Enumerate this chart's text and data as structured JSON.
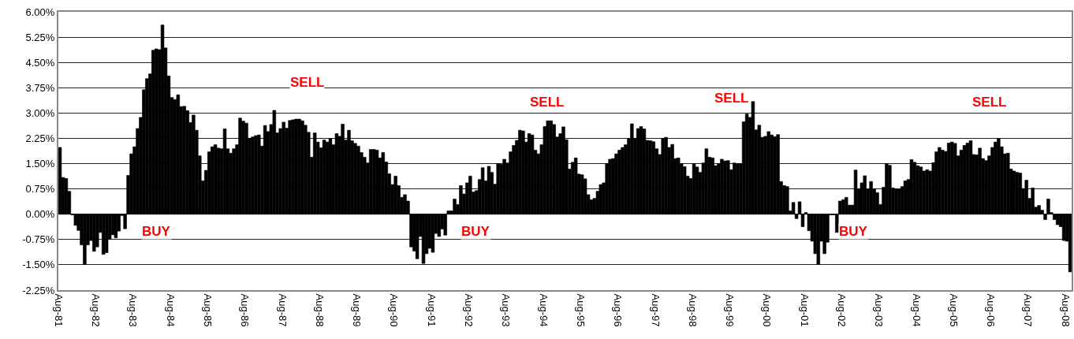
{
  "chart_data": {
    "type": "bar",
    "color": "#000000",
    "grid": "y",
    "x": [
      "1981-08",
      "1981-09",
      "1981-10",
      "1981-11",
      "1981-12",
      "1982-01",
      "1982-02",
      "1982-03",
      "1982-04",
      "1982-05",
      "1982-06",
      "1982-07",
      "1982-08",
      "1982-09",
      "1982-10",
      "1982-11",
      "1982-12",
      "1983-01",
      "1983-02",
      "1983-03",
      "1983-04",
      "1983-05",
      "1983-06",
      "1983-07",
      "1983-08",
      "1983-09",
      "1983-10",
      "1983-11",
      "1983-12",
      "1984-01",
      "1984-02",
      "1984-03",
      "1984-04",
      "1984-05",
      "1984-06",
      "1984-07",
      "1984-08",
      "1984-09",
      "1984-10",
      "1984-11",
      "1984-12",
      "1985-01",
      "1985-02",
      "1985-03",
      "1985-04",
      "1985-05",
      "1985-06",
      "1985-07",
      "1985-08",
      "1985-09",
      "1985-10",
      "1985-11",
      "1985-12",
      "1986-01",
      "1986-02",
      "1986-03",
      "1986-04",
      "1986-05",
      "1986-06",
      "1986-07",
      "1986-08",
      "1986-09",
      "1986-10",
      "1986-11",
      "1986-12",
      "1987-01",
      "1987-02",
      "1987-03",
      "1987-04",
      "1987-05",
      "1987-06",
      "1987-07",
      "1987-08",
      "1987-09",
      "1987-10",
      "1987-11",
      "1987-12",
      "1988-01",
      "1988-02",
      "1988-03",
      "1988-04",
      "1988-05",
      "1988-06",
      "1988-07",
      "1988-08",
      "1988-09",
      "1988-10",
      "1988-11",
      "1988-12",
      "1989-01",
      "1989-02",
      "1989-03",
      "1989-04",
      "1989-05",
      "1989-06",
      "1989-07",
      "1989-08",
      "1989-09",
      "1989-10",
      "1989-11",
      "1989-12",
      "1990-01",
      "1990-02",
      "1990-03",
      "1990-04",
      "1990-05",
      "1990-06",
      "1990-07",
      "1990-08",
      "1990-09",
      "1990-10",
      "1990-11",
      "1990-12",
      "1991-01",
      "1991-02",
      "1991-03",
      "1991-04",
      "1991-05",
      "1991-06",
      "1991-07",
      "1991-08",
      "1991-09",
      "1991-10",
      "1991-11",
      "1991-12",
      "1992-01",
      "1992-02",
      "1992-03",
      "1992-04",
      "1992-05",
      "1992-06",
      "1992-07",
      "1992-08",
      "1992-09",
      "1992-10",
      "1992-11",
      "1992-12",
      "1993-01",
      "1993-02",
      "1993-03",
      "1993-04",
      "1993-05",
      "1993-06",
      "1993-07",
      "1993-08",
      "1993-09",
      "1993-10",
      "1993-11",
      "1993-12",
      "1994-01",
      "1994-02",
      "1994-03",
      "1994-04",
      "1994-05",
      "1994-06",
      "1994-07",
      "1994-08",
      "1994-09",
      "1994-10",
      "1994-11",
      "1994-12",
      "1995-01",
      "1995-02",
      "1995-03",
      "1995-04",
      "1995-05",
      "1995-06",
      "1995-07",
      "1995-08",
      "1995-09",
      "1995-10",
      "1995-11",
      "1995-12",
      "1996-01",
      "1996-02",
      "1996-03",
      "1996-04",
      "1996-05",
      "1996-06",
      "1996-07",
      "1996-08",
      "1996-09",
      "1996-10",
      "1996-11",
      "1996-12",
      "1997-01",
      "1997-02",
      "1997-03",
      "1997-04",
      "1997-05",
      "1997-06",
      "1997-07",
      "1997-08",
      "1997-09",
      "1997-10",
      "1997-11",
      "1997-12",
      "1998-01",
      "1998-02",
      "1998-03",
      "1998-04",
      "1998-05",
      "1998-06",
      "1998-07",
      "1998-08",
      "1998-09",
      "1998-10",
      "1998-11",
      "1998-12",
      "1999-01",
      "1999-02",
      "1999-03",
      "1999-04",
      "1999-05",
      "1999-06",
      "1999-07",
      "1999-08",
      "1999-09",
      "1999-10",
      "1999-11",
      "1999-12",
      "2000-01",
      "2000-02",
      "2000-03",
      "2000-04",
      "2000-05",
      "2000-06",
      "2000-07",
      "2000-08",
      "2000-09",
      "2000-10",
      "2000-11",
      "2000-12",
      "2001-01",
      "2001-02",
      "2001-03",
      "2001-04",
      "2001-05",
      "2001-06",
      "2001-07",
      "2001-08",
      "2001-09",
      "2001-10",
      "2001-11",
      "2001-12",
      "2002-01",
      "2002-02",
      "2002-03",
      "2002-04",
      "2002-05",
      "2002-06",
      "2002-07",
      "2002-08",
      "2002-09",
      "2002-10",
      "2002-11",
      "2002-12",
      "2003-01",
      "2003-02",
      "2003-03",
      "2003-04",
      "2003-05",
      "2003-06",
      "2003-07",
      "2003-08",
      "2003-09",
      "2003-10",
      "2003-11",
      "2003-12",
      "2004-01",
      "2004-02",
      "2004-03",
      "2004-04",
      "2004-05",
      "2004-06",
      "2004-07",
      "2004-08",
      "2004-09",
      "2004-10",
      "2004-11",
      "2004-12",
      "2005-01",
      "2005-02",
      "2005-03",
      "2005-04",
      "2005-05",
      "2005-06",
      "2005-07",
      "2005-08",
      "2005-09",
      "2005-10",
      "2005-11",
      "2005-12",
      "2006-01",
      "2006-02",
      "2006-03",
      "2006-04",
      "2006-05",
      "2006-06",
      "2006-07",
      "2006-08",
      "2006-09",
      "2006-10",
      "2006-11",
      "2006-12",
      "2007-01",
      "2007-02",
      "2007-03",
      "2007-04",
      "2007-05",
      "2007-06",
      "2007-07",
      "2007-08",
      "2007-09",
      "2007-10",
      "2007-11",
      "2007-12",
      "2008-01",
      "2008-02",
      "2008-03",
      "2008-04",
      "2008-05",
      "2008-06",
      "2008-07",
      "2008-08",
      "2008-09"
    ],
    "values": [
      1.98,
      1.09,
      1.06,
      0.68,
      -0.02,
      -0.33,
      -0.48,
      -0.91,
      -1.49,
      -0.91,
      -0.78,
      -1.1,
      -0.97,
      -0.54,
      -1.19,
      -1.14,
      -0.74,
      -0.61,
      -0.7,
      -0.5,
      -0.04,
      -0.43,
      1.15,
      1.79,
      2.0,
      2.54,
      2.87,
      3.69,
      4.02,
      4.16,
      4.86,
      4.9,
      4.88,
      5.61,
      4.93,
      4.1,
      3.46,
      3.4,
      3.54,
      3.19,
      3.2,
      3.07,
      2.72,
      2.94,
      2.49,
      1.73,
      0.99,
      1.3,
      1.85,
      2.0,
      2.06,
      1.96,
      1.94,
      2.53,
      1.94,
      1.81,
      1.94,
      2.06,
      2.85,
      2.76,
      2.7,
      2.25,
      2.29,
      2.33,
      2.35,
      2.02,
      2.63,
      2.45,
      2.66,
      3.08,
      2.41,
      2.54,
      2.73,
      2.55,
      2.78,
      2.8,
      2.82,
      2.82,
      2.77,
      2.64,
      2.43,
      1.69,
      2.41,
      2.14,
      1.97,
      2.2,
      2.14,
      2.24,
      2.06,
      2.39,
      2.31,
      2.67,
      2.2,
      2.49,
      2.18,
      2.1,
      2.02,
      1.83,
      1.69,
      1.52,
      1.92,
      1.92,
      1.9,
      1.67,
      1.83,
      1.55,
      1.2,
      0.88,
      1.13,
      0.85,
      0.5,
      0.58,
      0.39,
      -0.97,
      -1.09,
      -1.32,
      -0.66,
      -1.46,
      -1.17,
      -1.01,
      -1.13,
      -0.57,
      -0.66,
      -0.44,
      -0.62,
      0.1,
      0.1,
      0.45,
      0.29,
      0.85,
      0.6,
      0.93,
      1.13,
      0.66,
      0.7,
      1.03,
      1.38,
      0.99,
      1.42,
      1.24,
      0.89,
      1.5,
      1.48,
      1.63,
      1.52,
      1.85,
      2.04,
      2.19,
      2.49,
      2.47,
      2.14,
      2.39,
      2.35,
      1.9,
      1.79,
      2.06,
      2.6,
      2.77,
      2.77,
      2.66,
      2.29,
      2.39,
      2.59,
      2.21,
      1.34,
      1.54,
      1.67,
      1.19,
      1.17,
      1.05,
      0.58,
      0.43,
      0.47,
      0.68,
      0.88,
      0.93,
      1.5,
      1.63,
      1.65,
      1.79,
      1.9,
      1.98,
      2.06,
      2.24,
      2.68,
      2.25,
      2.54,
      2.6,
      2.53,
      2.19,
      2.18,
      2.15,
      1.94,
      1.77,
      2.25,
      2.28,
      1.98,
      2.07,
      1.65,
      1.67,
      1.5,
      1.41,
      1.13,
      1.06,
      1.5,
      1.4,
      1.24,
      1.52,
      1.94,
      1.69,
      1.67,
      1.44,
      1.5,
      1.63,
      1.58,
      1.59,
      1.32,
      1.52,
      1.5,
      1.5,
      2.74,
      2.97,
      2.87,
      3.34,
      2.5,
      2.64,
      2.28,
      2.31,
      2.45,
      2.35,
      2.3,
      2.36,
      0.97,
      0.85,
      0.82,
      0.1,
      0.35,
      -0.13,
      0.37,
      -0.37,
      0.05,
      -0.49,
      -0.8,
      -1.17,
      -1.48,
      -0.8,
      -1.17,
      -0.83,
      -0.02,
      -0.02,
      -0.54,
      0.39,
      0.43,
      0.5,
      0.27,
      0.27,
      1.31,
      0.75,
      0.93,
      1.14,
      0.74,
      0.97,
      0.75,
      0.64,
      0.29,
      0.8,
      1.5,
      1.45,
      0.78,
      0.75,
      0.74,
      0.82,
      0.99,
      1.03,
      1.62,
      1.54,
      1.44,
      1.4,
      1.28,
      1.32,
      1.28,
      1.53,
      1.85,
      1.98,
      1.9,
      1.86,
      2.11,
      2.14,
      2.1,
      1.73,
      1.9,
      2.04,
      2.11,
      2.18,
      1.77,
      1.76,
      1.96,
      1.65,
      1.59,
      1.73,
      1.98,
      2.14,
      2.24,
      2.0,
      1.79,
      1.81,
      1.34,
      1.28,
      1.24,
      1.22,
      0.76,
      1.01,
      0.47,
      0.78,
      0.21,
      0.26,
      0.12,
      -0.16,
      0.45,
      0.05,
      -0.16,
      -0.31,
      -0.37,
      -0.78,
      -0.8,
      -1.71
    ],
    "xlim": [
      "1981-08-01",
      "2008-10-01"
    ],
    "xticks": [
      {
        "value": "1981-08",
        "label": "Aug-81"
      },
      {
        "value": "1982-08",
        "label": "Aug-82"
      },
      {
        "value": "1983-08",
        "label": "Aug-83"
      },
      {
        "value": "1984-08",
        "label": "Aug-84"
      },
      {
        "value": "1985-08",
        "label": "Aug-85"
      },
      {
        "value": "1986-08",
        "label": "Aug-86"
      },
      {
        "value": "1987-08",
        "label": "Aug-87"
      },
      {
        "value": "1988-08",
        "label": "Aug-88"
      },
      {
        "value": "1989-08",
        "label": "Aug-89"
      },
      {
        "value": "1990-08",
        "label": "Aug-90"
      },
      {
        "value": "1991-08",
        "label": "Aug-91"
      },
      {
        "value": "1992-08",
        "label": "Aug-92"
      },
      {
        "value": "1993-08",
        "label": "Aug-93"
      },
      {
        "value": "1994-08",
        "label": "Aug-94"
      },
      {
        "value": "1995-08",
        "label": "Aug-95"
      },
      {
        "value": "1996-08",
        "label": "Aug-96"
      },
      {
        "value": "1997-08",
        "label": "Aug-97"
      },
      {
        "value": "1998-08",
        "label": "Aug-98"
      },
      {
        "value": "1999-08",
        "label": "Aug-99"
      },
      {
        "value": "2000-08",
        "label": "Aug-00"
      },
      {
        "value": "2001-08",
        "label": "Aug-01"
      },
      {
        "value": "2002-08",
        "label": "Aug-02"
      },
      {
        "value": "2003-08",
        "label": "Aug-03"
      },
      {
        "value": "2004-08",
        "label": "Aug-04"
      },
      {
        "value": "2005-08",
        "label": "Aug-05"
      },
      {
        "value": "2006-08",
        "label": "Aug-06"
      },
      {
        "value": "2007-08",
        "label": "Aug-07"
      },
      {
        "value": "2008-08",
        "label": "Aug-08"
      }
    ],
    "ylim": [
      -2.25,
      6
    ],
    "yticks": [
      {
        "value": -2.25,
        "label": "-2.25%"
      },
      {
        "value": -1.5,
        "label": "-1.50%"
      },
      {
        "value": -0.75,
        "label": "-0.75%"
      },
      {
        "value": 0,
        "label": "0.00%"
      },
      {
        "value": 0.75,
        "label": "0.75%"
      },
      {
        "value": 1.5,
        "label": "1.50%"
      },
      {
        "value": 2.25,
        "label": "2.25%"
      },
      {
        "value": 3,
        "label": "3.00%"
      },
      {
        "value": 3.75,
        "label": "3.75%"
      },
      {
        "value": 4.5,
        "label": "4.50%"
      },
      {
        "value": 5.25,
        "label": "5.25%"
      },
      {
        "value": 6,
        "label": "6.00%"
      }
    ],
    "annotations": [
      "SELL",
      "SELL",
      "SELL",
      "SELL",
      "BUY",
      "BUY",
      "BUY"
    ]
  }
}
